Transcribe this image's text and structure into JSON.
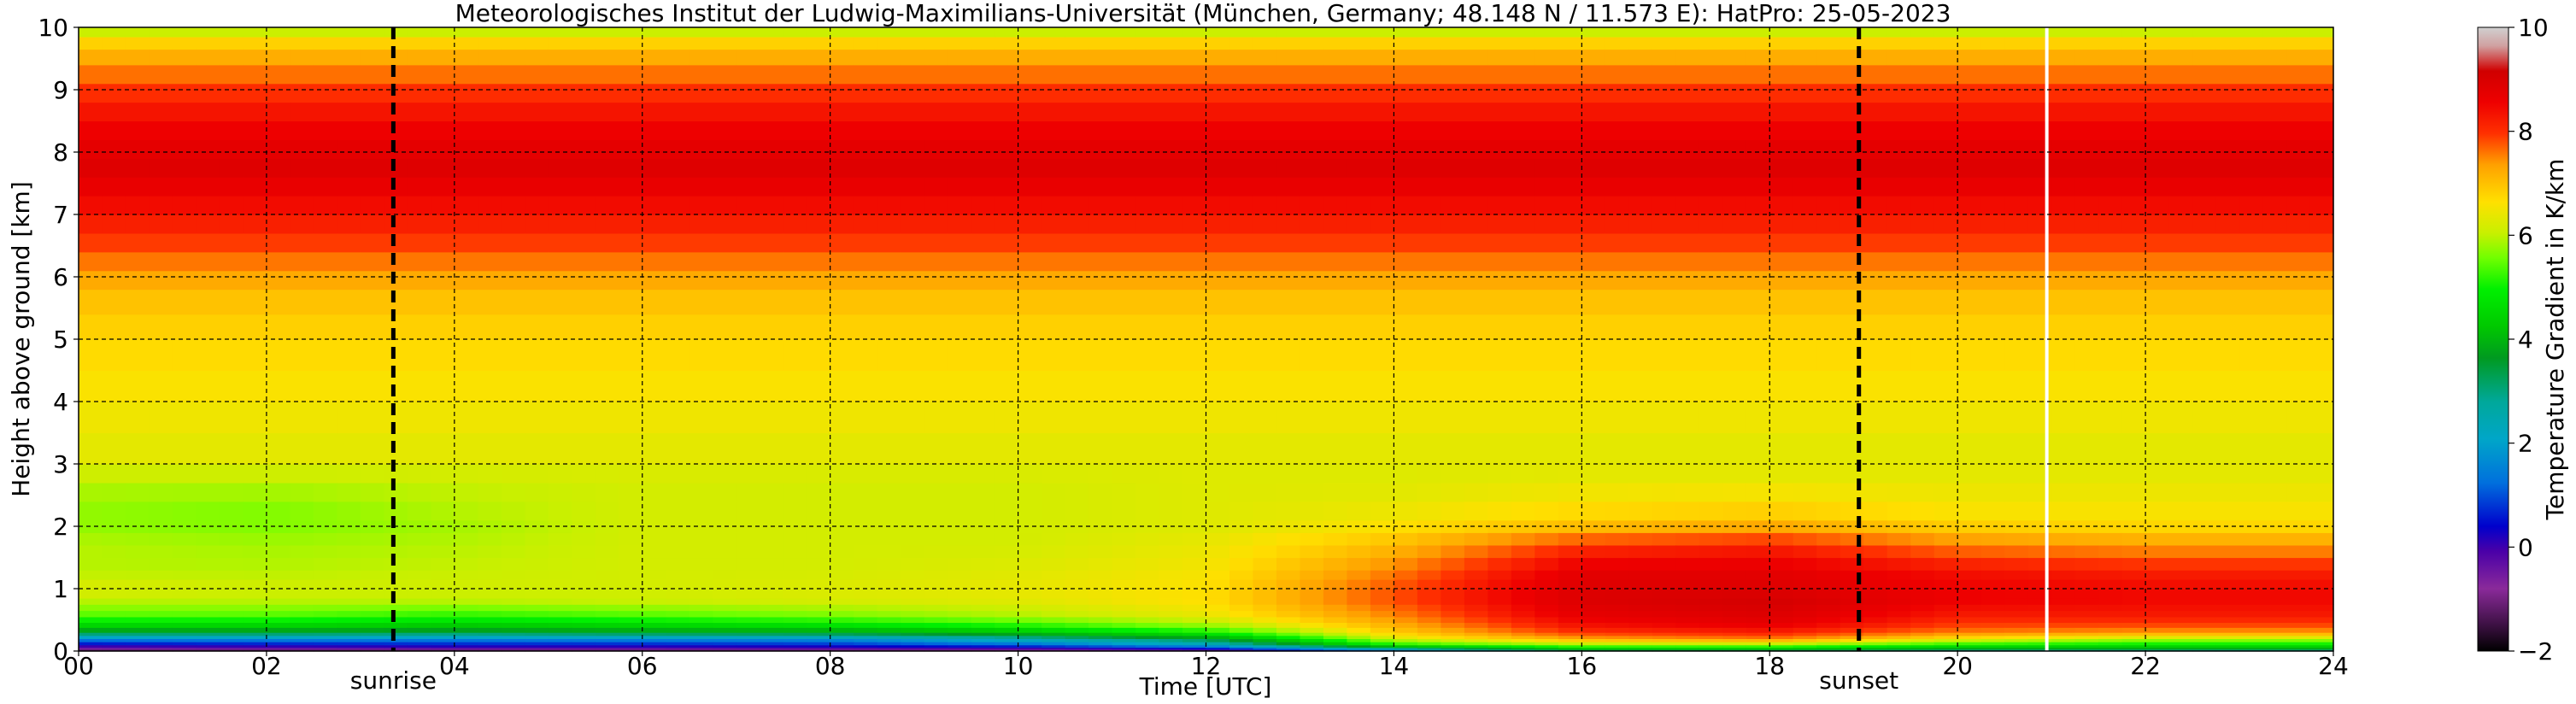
{
  "chart_data": {
    "type": "heatmap",
    "title": "Meteorologisches Institut der Ludwig-Maximilians-Universität (München, Germany; 48.148 N / 11.573 E):    HatPro: 25-05-2023",
    "xlabel": "Time [UTC]",
    "ylabel": "Height above ground [km]",
    "xlim": [
      0,
      24
    ],
    "ylim": [
      0,
      10
    ],
    "x_ticks": [
      0,
      2,
      4,
      6,
      8,
      10,
      12,
      14,
      16,
      18,
      20,
      22,
      24
    ],
    "x_tick_labels": [
      "00",
      "02",
      "04",
      "06",
      "08",
      "10",
      "12",
      "14",
      "16",
      "18",
      "20",
      "22",
      "24"
    ],
    "y_ticks": [
      0,
      1,
      2,
      3,
      4,
      5,
      6,
      7,
      8,
      9,
      10
    ],
    "y_tick_labels": [
      "0",
      "1",
      "2",
      "3",
      "4",
      "5",
      "6",
      "7",
      "8",
      "9",
      "10"
    ],
    "grid": true,
    "colorbar": {
      "label": "Temperature Gradient in K/km",
      "range": [
        -2,
        10
      ],
      "ticks": [
        -2,
        0,
        2,
        4,
        6,
        8,
        10
      ],
      "tick_labels": [
        "−2",
        "0",
        "2",
        "4",
        "6",
        "8",
        "10"
      ]
    },
    "events": [
      {
        "label": "sunrise",
        "time": 3.35
      },
      {
        "label": "sunset",
        "time": 18.95
      }
    ],
    "data_gap_times": [
      20.95
    ],
    "profile_heights_km": [
      0,
      0.05,
      0.1,
      0.2,
      0.3,
      0.45,
      0.6,
      0.8,
      1.0,
      1.3,
      1.7,
      2.0,
      2.3,
      2.7,
      3.0,
      4.0,
      5.0,
      5.8,
      6.2,
      6.6,
      7.2,
      7.8,
      8.5,
      9.0,
      9.5,
      9.9,
      10.0
    ],
    "profiles": [
      {
        "time": 0,
        "gradient": [
          -1.5,
          -0.5,
          0.3,
          1.5,
          3.5,
          4.8,
          5.5,
          6.0,
          6.3,
          6.0,
          6.0,
          5.8,
          5.8,
          6.0,
          6.3,
          6.5,
          6.7,
          7.0,
          7.5,
          8.0,
          8.5,
          9.0,
          8.5,
          8.0,
          7.2,
          6.5,
          5.0
        ]
      },
      {
        "time": 2,
        "gradient": [
          -1.5,
          -0.4,
          0.4,
          1.6,
          3.5,
          4.8,
          5.5,
          6.0,
          6.2,
          6.0,
          5.9,
          5.7,
          5.7,
          6.0,
          6.3,
          6.5,
          6.7,
          7.0,
          7.5,
          8.0,
          8.5,
          9.0,
          8.5,
          8.0,
          7.2,
          6.5,
          5.0
        ]
      },
      {
        "time": 4,
        "gradient": [
          -1.4,
          -0.3,
          0.5,
          1.5,
          3.4,
          4.6,
          5.3,
          6.0,
          6.2,
          6.1,
          6.0,
          5.9,
          6.0,
          6.1,
          6.3,
          6.5,
          6.7,
          7.0,
          7.5,
          8.0,
          8.5,
          9.0,
          8.5,
          8.0,
          7.2,
          6.5,
          5.0
        ]
      },
      {
        "time": 6,
        "gradient": [
          -1.4,
          -0.3,
          0.5,
          1.6,
          3.6,
          4.8,
          5.5,
          6.1,
          6.2,
          6.2,
          6.2,
          6.2,
          6.2,
          6.2,
          6.3,
          6.5,
          6.7,
          7.0,
          7.5,
          8.0,
          8.5,
          9.0,
          8.5,
          8.0,
          7.2,
          6.5,
          5.0
        ]
      },
      {
        "time": 8,
        "gradient": [
          -1.3,
          -0.2,
          0.6,
          1.7,
          3.7,
          5.0,
          5.7,
          6.2,
          6.3,
          6.2,
          6.2,
          6.2,
          6.2,
          6.2,
          6.3,
          6.5,
          6.7,
          7.0,
          7.5,
          8.0,
          8.5,
          9.0,
          8.5,
          8.0,
          7.2,
          6.5,
          5.0
        ]
      },
      {
        "time": 10,
        "gradient": [
          -1.2,
          0.0,
          1.0,
          2.5,
          4.2,
          5.4,
          6.0,
          6.3,
          6.4,
          6.3,
          6.2,
          6.2,
          6.2,
          6.2,
          6.3,
          6.5,
          6.7,
          7.0,
          7.5,
          8.0,
          8.5,
          9.0,
          8.5,
          8.0,
          7.2,
          6.5,
          5.0
        ]
      },
      {
        "time": 12,
        "gradient": [
          -0.8,
          0.5,
          2.0,
          3.5,
          5.0,
          6.0,
          6.4,
          6.6,
          6.6,
          6.5,
          6.4,
          6.3,
          6.3,
          6.3,
          6.3,
          6.5,
          6.7,
          7.0,
          7.5,
          8.0,
          8.5,
          9.0,
          8.5,
          8.0,
          7.2,
          6.5,
          5.0
        ]
      },
      {
        "time": 14,
        "gradient": [
          1.0,
          3.0,
          5.0,
          6.2,
          6.8,
          7.2,
          7.5,
          7.8,
          7.8,
          7.5,
          7.0,
          6.6,
          6.4,
          6.3,
          6.3,
          6.5,
          6.7,
          7.0,
          7.5,
          8.0,
          8.5,
          9.0,
          8.5,
          8.0,
          7.2,
          6.5,
          5.0
        ]
      },
      {
        "time": 16,
        "gradient": [
          3.0,
          4.5,
          5.8,
          7.2,
          8.0,
          8.5,
          8.8,
          9.0,
          9.0,
          8.8,
          8.0,
          7.0,
          6.6,
          6.4,
          6.3,
          6.5,
          6.7,
          7.0,
          7.5,
          8.0,
          8.5,
          9.0,
          8.5,
          8.0,
          7.2,
          6.5,
          5.0
        ]
      },
      {
        "time": 18,
        "gradient": [
          3.0,
          4.5,
          5.8,
          7.5,
          8.2,
          8.8,
          9.0,
          9.2,
          9.0,
          8.8,
          8.2,
          7.2,
          6.7,
          6.4,
          6.3,
          6.5,
          6.7,
          7.0,
          7.5,
          8.0,
          8.5,
          9.0,
          8.5,
          8.0,
          7.2,
          6.5,
          5.0
        ]
      },
      {
        "time": 20,
        "gradient": [
          2.5,
          4.0,
          5.0,
          6.5,
          7.5,
          8.0,
          8.3,
          8.6,
          8.6,
          8.4,
          7.5,
          6.8,
          6.5,
          6.4,
          6.3,
          6.5,
          6.7,
          7.0,
          7.5,
          8.0,
          8.5,
          9.0,
          8.5,
          8.0,
          7.2,
          6.5,
          5.0
        ]
      },
      {
        "time": 22,
        "gradient": [
          2.5,
          4.0,
          4.8,
          6.0,
          7.3,
          8.0,
          8.3,
          8.5,
          8.5,
          8.2,
          7.3,
          6.7,
          6.5,
          6.4,
          6.3,
          6.5,
          6.7,
          7.0,
          7.5,
          8.0,
          8.5,
          9.0,
          8.5,
          8.0,
          7.2,
          6.5,
          5.0
        ]
      },
      {
        "time": 24,
        "gradient": [
          2.5,
          4.0,
          4.8,
          6.0,
          7.3,
          8.0,
          8.3,
          8.5,
          8.5,
          8.2,
          7.3,
          6.7,
          6.5,
          6.4,
          6.3,
          6.5,
          6.7,
          7.0,
          7.5,
          8.0,
          8.5,
          9.0,
          8.5,
          8.0,
          7.2,
          6.5,
          5.0
        ]
      }
    ]
  }
}
